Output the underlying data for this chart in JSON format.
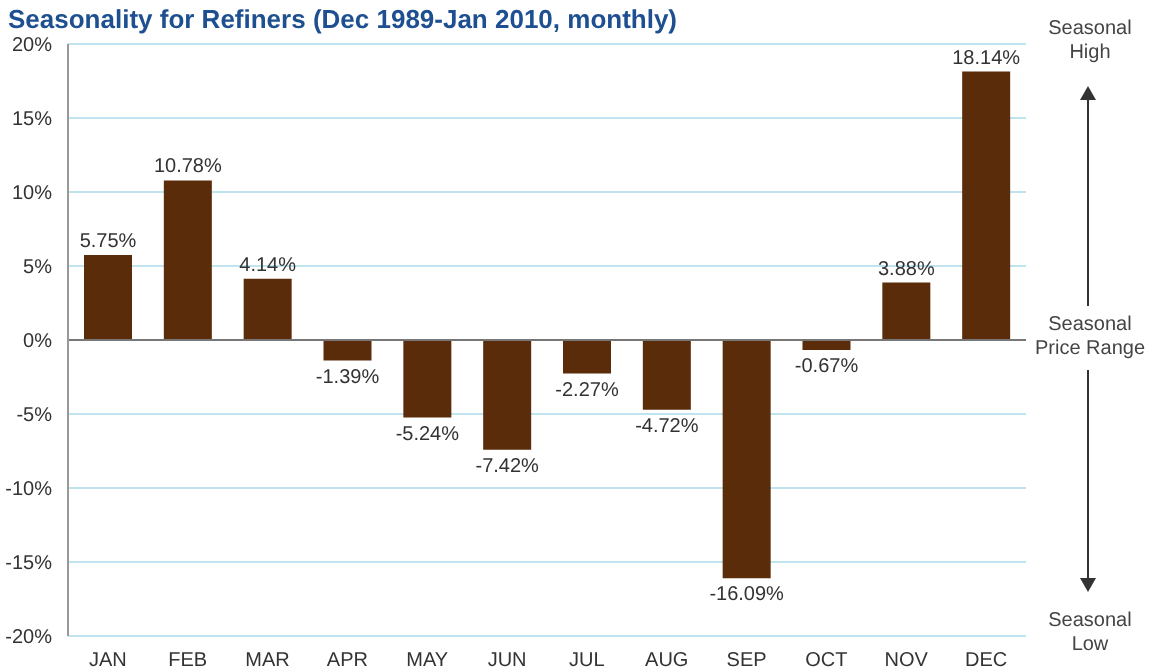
{
  "chart_data": {
    "type": "bar",
    "title": "Seasonality for Refiners (Dec 1989-Jan 2010, monthly)",
    "categories": [
      "JAN",
      "FEB",
      "MAR",
      "APR",
      "MAY",
      "JUN",
      "JUL",
      "AUG",
      "SEP",
      "OCT",
      "NOV",
      "DEC"
    ],
    "values": [
      5.75,
      10.78,
      4.14,
      -1.39,
      -5.24,
      -7.42,
      -2.27,
      -4.72,
      -16.09,
      -0.67,
      3.88,
      18.14
    ],
    "value_labels": [
      "5.75%",
      "10.78%",
      "4.14%",
      "-1.39%",
      "-5.24%",
      "-7.42%",
      "-2.27%",
      "-4.72%",
      "-16.09%",
      "-0.67%",
      "3.88%",
      "18.14%"
    ],
    "color": "#5b2c0a",
    "ylim": [
      -20,
      20
    ],
    "yticks": [
      {
        "value": -20,
        "label": "-20%"
      },
      {
        "value": -15,
        "label": "-15%"
      },
      {
        "value": -10,
        "label": "-10%"
      },
      {
        "value": -5,
        "label": "-5%"
      },
      {
        "value": 0,
        "label": "0%"
      },
      {
        "value": 5,
        "label": "5%"
      },
      {
        "value": 10,
        "label": "10%"
      },
      {
        "value": 15,
        "label": "15%"
      },
      {
        "value": 20,
        "label": "20%"
      }
    ],
    "grid": "y",
    "legend": false,
    "annotations": [
      "Seasonal High",
      "Seasonal Price Range",
      "Seasonal Low"
    ]
  }
}
